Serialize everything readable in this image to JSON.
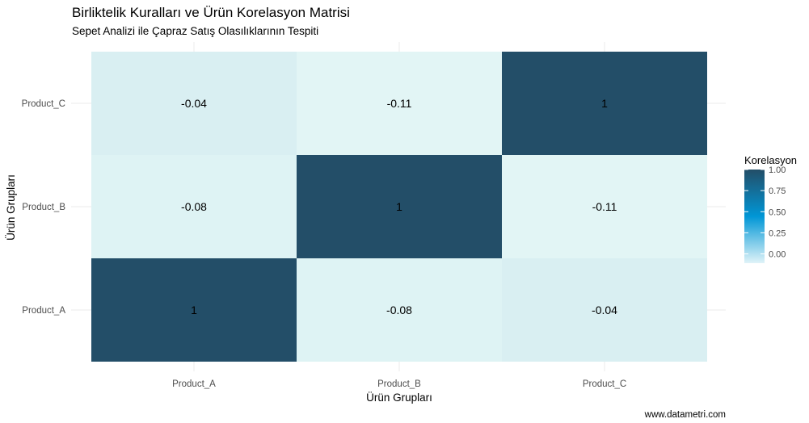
{
  "chart_data": {
    "type": "heatmap",
    "title": "Birliktelik Kuralları ve Ürün Korelasyon Matrisi",
    "subtitle": "Sepet Analizi ile Çapraz Satış Olasılıklarının Tespiti",
    "xlabel": "Ürün Grupları",
    "ylabel": "Ürün Grupları",
    "x_categories": [
      "Product_A",
      "Product_B",
      "Product_C"
    ],
    "y_categories": [
      "Product_A",
      "Product_B",
      "Product_C"
    ],
    "cells": [
      {
        "x": "Product_A",
        "y": "Product_A",
        "value": 1,
        "label": "1"
      },
      {
        "x": "Product_B",
        "y": "Product_A",
        "value": -0.08,
        "label": "-0.08"
      },
      {
        "x": "Product_C",
        "y": "Product_A",
        "value": -0.04,
        "label": "-0.04"
      },
      {
        "x": "Product_A",
        "y": "Product_B",
        "value": -0.08,
        "label": "-0.08"
      },
      {
        "x": "Product_B",
        "y": "Product_B",
        "value": 1,
        "label": "1"
      },
      {
        "x": "Product_C",
        "y": "Product_B",
        "value": -0.11,
        "label": "-0.11"
      },
      {
        "x": "Product_A",
        "y": "Product_C",
        "value": -0.04,
        "label": "-0.04"
      },
      {
        "x": "Product_B",
        "y": "Product_C",
        "value": -0.11,
        "label": "-0.11"
      },
      {
        "x": "Product_C",
        "y": "Product_C",
        "value": 1,
        "label": "1"
      }
    ],
    "legend": {
      "title": "Korelasyon",
      "breaks": [
        1.0,
        0.75,
        0.5,
        0.25,
        0.0
      ],
      "labels": [
        "1.00",
        "0.75",
        "0.50",
        "0.25",
        "0.00"
      ],
      "range": [
        -0.11,
        1
      ],
      "position": "right"
    },
    "color_scale": {
      "low": "#e0f3f8",
      "mid": "#0096d6",
      "high": "#234e68"
    },
    "caption": "www.datametri.com"
  }
}
